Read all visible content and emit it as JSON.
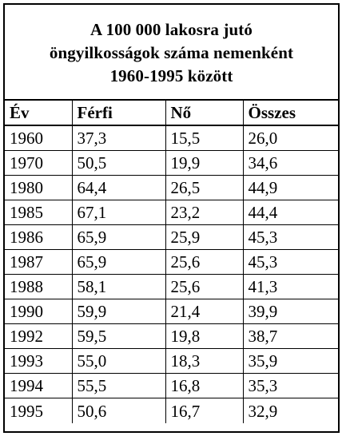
{
  "title": {
    "line1": "A 100 000 lakosra jutó",
    "line2": "öngyilkosságok száma nemenként",
    "line3": "1960-1995 között"
  },
  "table": {
    "headers": [
      "Év",
      "Férfi",
      "Nő",
      "Összes"
    ],
    "rows": [
      [
        "1960",
        "37,3",
        "15,5",
        "26,0"
      ],
      [
        "1970",
        "50,5",
        "19,9",
        "34,6"
      ],
      [
        "1980",
        "64,4",
        "26,5",
        "44,9"
      ],
      [
        "1985",
        "67,1",
        "23,2",
        "44,4"
      ],
      [
        "1986",
        "65,9",
        "25,9",
        "45,3"
      ],
      [
        "1987",
        "65,9",
        "25,6",
        "45,3"
      ],
      [
        "1988",
        "58,1",
        "25,6",
        "41,3"
      ],
      [
        "1990",
        "59,9",
        "21,4",
        "39,9"
      ],
      [
        "1992",
        "59,5",
        "19,8",
        "38,7"
      ],
      [
        "1993",
        "55,0",
        "18,3",
        "35,9"
      ],
      [
        "1994",
        "55,5",
        "16,8",
        "35,3"
      ],
      [
        "1995",
        "50,6",
        "16,7",
        "32,9"
      ]
    ]
  }
}
